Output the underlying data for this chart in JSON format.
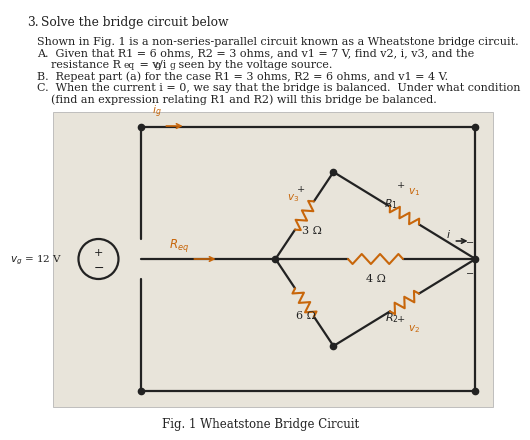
{
  "orange": "#c8660a",
  "black": "#222222",
  "gray_bg": "#e8e4da",
  "white": "#ffffff",
  "fig_caption": "Fig. 1 Wheatstone Bridge Circuit",
  "vs_label": "$v_g$ = 12 V",
  "req_label": "$R_{eq}$",
  "ig_label": "$i_g$",
  "r3_label": "3 Ω",
  "r4_label": "4 Ω",
  "r6_label": "6 Ω",
  "r1_label": "$R_1$",
  "r2_label": "$R_2$",
  "v1_label": "$v_1$",
  "v2_label": "$v_2$",
  "v3_label": "$v_3$",
  "i_label": "$i$",
  "text_line1": "3.   Solve the bridge circuit below",
  "text_line2": "Shown in Fig. 1 is a non-series-parallel circuit known as a Wheatstone bridge circuit.",
  "text_lineA1": "A.   Given that R1 = 6 ohms, R2 = 3 ohms, and v1 = 7 V, find v2, i, v3, and the",
  "text_lineA2": "       resistance R",
  "text_lineA2b": "eq",
  "text_lineA2c": " = v",
  "text_lineA2d": "g",
  "text_lineA2e": "/i",
  "text_lineA2f": "g",
  "text_lineA2g": " seen by the voltage source.",
  "text_lineB": "B.   Repeat part (a) for the case R1 = 3 ohms, R2 = 6 ohms, and v1 = 4 V.",
  "text_lineC1": "C.   When the current i = 0, we say that the bridge is balanced.  Under what condition",
  "text_lineC2": "       (find an expression relating R1 and R2) will this bridge be balanced."
}
